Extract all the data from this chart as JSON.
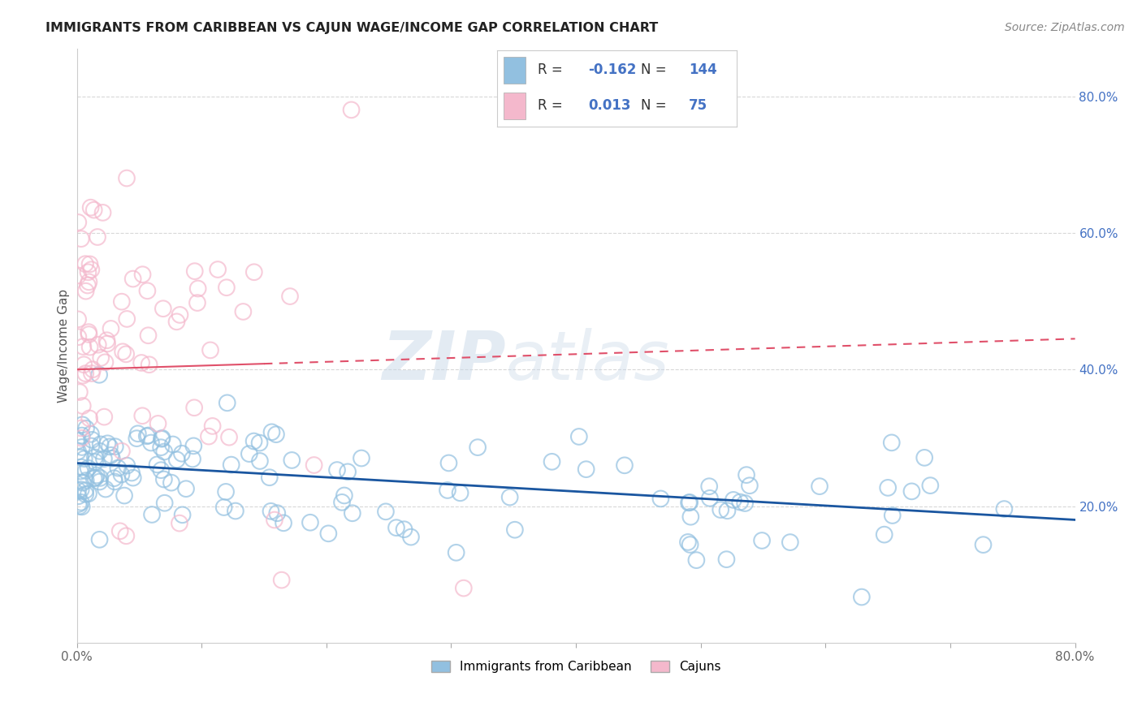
{
  "title": "IMMIGRANTS FROM CARIBBEAN VS CAJUN WAGE/INCOME GAP CORRELATION CHART",
  "source": "Source: ZipAtlas.com",
  "ylabel": "Wage/Income Gap",
  "xlim": [
    0.0,
    0.8
  ],
  "ylim": [
    0.0,
    0.87
  ],
  "yticks_right": [
    0.2,
    0.4,
    0.6,
    0.8
  ],
  "ytick_right_labels": [
    "20.0%",
    "40.0%",
    "60.0%",
    "80.0%"
  ],
  "blue_color": "#92c0e0",
  "pink_color": "#f4b8cc",
  "blue_edge_color": "#6aaad4",
  "pink_edge_color": "#e88aaa",
  "blue_line_color": "#1a56a0",
  "pink_line_color": "#e0506a",
  "legend_label_blue": "Immigrants from Caribbean",
  "legend_label_pink": "Cajuns",
  "watermark": "ZIPatlas",
  "background_color": "#ffffff",
  "grid_color": "#d8d8d8",
  "blue_R_text": "-0.162",
  "blue_N_text": "144",
  "pink_R_text": "0.013",
  "pink_N_text": "75",
  "text_color_dark": "#333333",
  "text_color_blue": "#4472c4"
}
